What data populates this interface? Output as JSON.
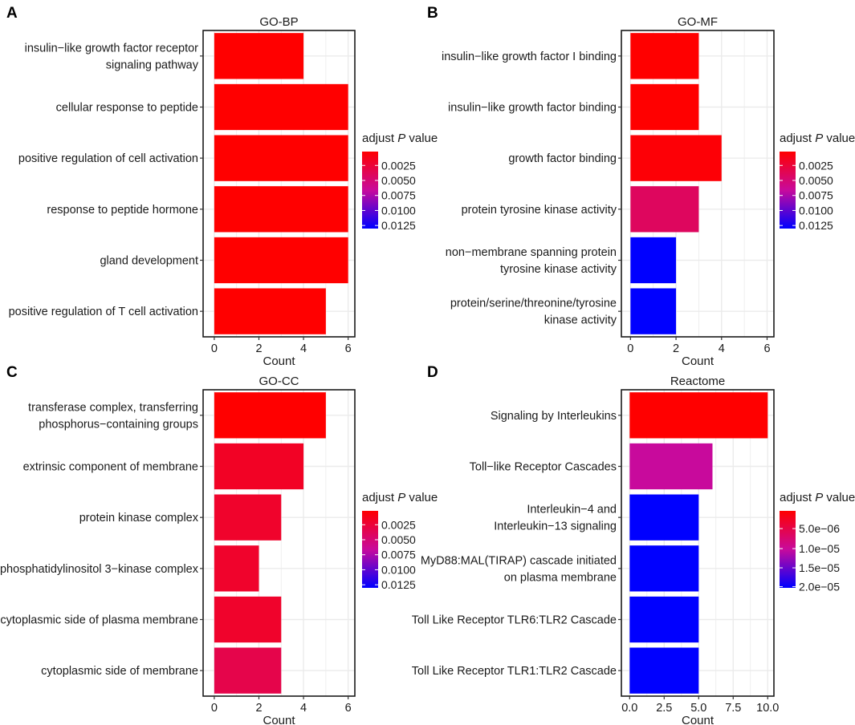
{
  "figure_title": "Enrichment analysis bar plots",
  "colors": {
    "low_p": "#ff0000",
    "high_p": "#0000ff",
    "grid": "#ebebeb",
    "frame": "#1a1a1a"
  },
  "chart_data": [
    {
      "panel": "A",
      "type": "bar",
      "orientation": "horizontal",
      "title": "GO-BP",
      "xlabel": "Count",
      "ylabel": "",
      "xlim": [
        -0.5,
        6.3
      ],
      "xticks": [
        0,
        2,
        4,
        6
      ],
      "xtick_labels": [
        "0",
        "2",
        "4",
        "6"
      ],
      "categories": [
        [
          "insulin−like growth factor receptor",
          "signaling pathway"
        ],
        [
          "cellular response to peptide"
        ],
        [
          "positive regulation of cell activation"
        ],
        [
          "response to peptide hormone"
        ],
        [
          "gland development"
        ],
        [
          "positive regulation of T cell activation"
        ]
      ],
      "values": [
        4,
        6,
        6,
        6,
        6,
        5
      ],
      "color_fraction": [
        0.0,
        0.0,
        0.0,
        0.0,
        0.0,
        0.0
      ],
      "legend": {
        "title_prefix": "adjust ",
        "title_italic": "P",
        "title_suffix": " value",
        "labels": [
          "0.0025",
          "0.0050",
          "0.0075",
          "0.0100",
          "0.0125"
        ],
        "label_fractions": [
          0.18,
          0.375,
          0.57,
          0.765,
          0.96
        ]
      }
    },
    {
      "panel": "B",
      "type": "bar",
      "orientation": "horizontal",
      "title": "GO-MF",
      "xlabel": "Count",
      "ylabel": "",
      "xlim": [
        -0.4,
        6.3
      ],
      "xticks": [
        0,
        2,
        4,
        6
      ],
      "xtick_labels": [
        "0",
        "2",
        "4",
        "6"
      ],
      "categories": [
        [
          "insulin−like growth factor I binding"
        ],
        [
          "insulin−like growth factor binding"
        ],
        [
          "growth factor binding"
        ],
        [
          "protein tyrosine kinase activity"
        ],
        [
          "non−membrane spanning protein",
          "tyrosine kinase activity"
        ],
        [
          "protein/serine/threonine/tyrosine",
          "kinase activity"
        ]
      ],
      "values": [
        3,
        3,
        4,
        3,
        2,
        2
      ],
      "color_fraction": [
        0.0,
        0.0,
        0.02,
        0.3,
        1.0,
        1.0
      ],
      "legend": {
        "title_prefix": "adjust ",
        "title_italic": "P",
        "title_suffix": " value",
        "labels": [
          "0.0025",
          "0.0050",
          "0.0075",
          "0.0100",
          "0.0125"
        ],
        "label_fractions": [
          0.18,
          0.375,
          0.57,
          0.765,
          0.96
        ]
      }
    },
    {
      "panel": "C",
      "type": "bar",
      "orientation": "horizontal",
      "title": "GO-CC",
      "xlabel": "Count",
      "ylabel": "",
      "xlim": [
        -0.5,
        6.3
      ],
      "xticks": [
        0,
        2,
        4,
        6
      ],
      "xtick_labels": [
        "0",
        "2",
        "4",
        "6"
      ],
      "categories": [
        [
          "transferase complex, transferring",
          "phosphorus−containing groups"
        ],
        [
          "extrinsic component of membrane"
        ],
        [
          "protein kinase complex"
        ],
        [
          "phosphatidylinositol 3−kinase complex"
        ],
        [
          "cytoplasmic side of plasma membrane"
        ],
        [
          "cytoplasmic side of membrane"
        ]
      ],
      "values": [
        5,
        4,
        3,
        2,
        3,
        3
      ],
      "color_fraction": [
        0.0,
        0.12,
        0.14,
        0.14,
        0.14,
        0.24
      ],
      "legend": {
        "title_prefix": "adjust ",
        "title_italic": "P",
        "title_suffix": " value",
        "labels": [
          "0.0025",
          "0.0050",
          "0.0075",
          "0.0100",
          "0.0125"
        ],
        "label_fractions": [
          0.18,
          0.375,
          0.57,
          0.765,
          0.96
        ]
      }
    },
    {
      "panel": "D",
      "type": "bar",
      "orientation": "horizontal",
      "title": "Reactome",
      "xlabel": "Count",
      "ylabel": "",
      "xlim": [
        -0.6,
        10.45
      ],
      "xticks": [
        0,
        2.5,
        5,
        7.5,
        10
      ],
      "xtick_labels": [
        "0.0",
        "2.5",
        "5.0",
        "7.5",
        "10.0"
      ],
      "categories": [
        [
          "Signaling by Interleukins"
        ],
        [
          "Toll−like Receptor Cascades"
        ],
        [
          "Interleukin−4 and",
          "Interleukin−13 signaling"
        ],
        [
          "MyD88:MAL(TIRAP) cascade initiated",
          "on plasma membrane"
        ],
        [
          "Toll Like Receptor TLR6:TLR2 Cascade"
        ],
        [
          "Toll Like Receptor TLR1:TLR2 Cascade"
        ]
      ],
      "values": [
        10,
        6,
        5,
        5,
        5,
        5
      ],
      "color_fraction": [
        0.0,
        0.5,
        1.0,
        1.0,
        1.0,
        1.0
      ],
      "legend": {
        "title_prefix": "adjust ",
        "title_italic": "P",
        "title_suffix": " value",
        "labels": [
          "5.0e−06",
          "1.0e−05",
          "1.5e−05",
          "2.0e−05"
        ],
        "label_fractions": [
          0.23,
          0.49,
          0.74,
          0.985
        ]
      }
    }
  ]
}
